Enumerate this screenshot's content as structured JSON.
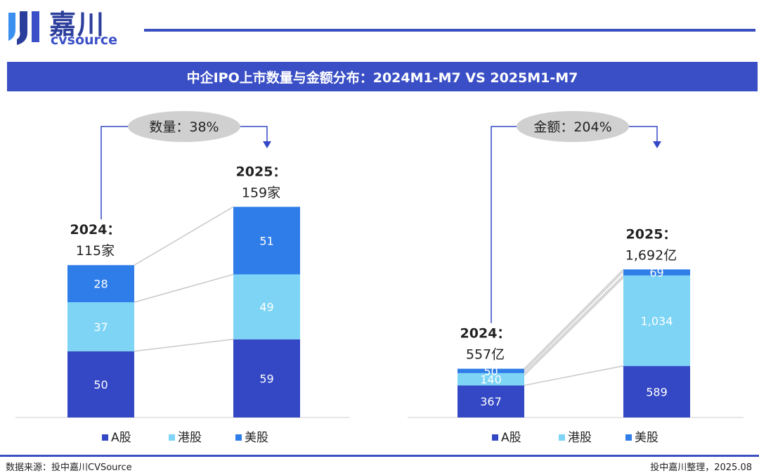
{
  "logo": {
    "cn": "嘉川",
    "en": "cvsource"
  },
  "title": "中企IPO上市数量与金额分布：2024M1-M7 VS 2025M1-M7",
  "footer": {
    "source": "数据来源：投中嘉川CVSource",
    "credit": "投中嘉川整理，2025.08"
  },
  "colors": {
    "a_share": "#3448c5",
    "hk_share": "#7dd4f5",
    "us_share": "#2f7de8",
    "title_bar": "#3a4fc5"
  },
  "legend": [
    "A股",
    "港股",
    "美股"
  ],
  "chart_data": [
    {
      "type": "bar",
      "stacked": true,
      "categories": [
        "2024",
        "2025"
      ],
      "series": [
        {
          "name": "A股",
          "values": [
            50,
            59
          ]
        },
        {
          "name": "港股",
          "values": [
            37,
            49
          ]
        },
        {
          "name": "美股",
          "values": [
            28,
            51
          ]
        }
      ],
      "totals": [
        115,
        159
      ],
      "total_labels": [
        [
          "2024：",
          "115家"
        ],
        [
          "2025：",
          "159家"
        ]
      ],
      "growth_label": "数量：38%",
      "legend_position": "bottom"
    },
    {
      "type": "bar",
      "stacked": true,
      "categories": [
        "2024",
        "2025"
      ],
      "series": [
        {
          "name": "A股",
          "values": [
            367,
            589
          ]
        },
        {
          "name": "港股",
          "values": [
            140,
            1034
          ]
        },
        {
          "name": "美股",
          "values": [
            50,
            69
          ]
        }
      ],
      "value_labels": [
        [
          "367",
          "140",
          "50"
        ],
        [
          "589",
          "1,034",
          "69"
        ]
      ],
      "totals": [
        557,
        1692
      ],
      "total_labels": [
        [
          "2024：",
          "557亿"
        ],
        [
          "2025：",
          "1,692亿"
        ]
      ],
      "growth_label": "金额：204%",
      "legend_position": "bottom"
    }
  ]
}
